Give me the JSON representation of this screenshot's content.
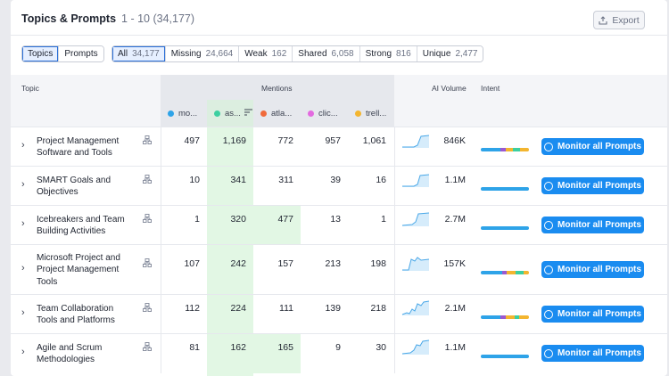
{
  "header": {
    "title": "Topics & Prompts",
    "range": "1 - 10 (34,177)",
    "export_label": "Export"
  },
  "view_tabs": [
    {
      "label": "Topics",
      "active": true
    },
    {
      "label": "Prompts",
      "active": false
    }
  ],
  "filters": [
    {
      "label": "All",
      "count": "34,177",
      "active": true
    },
    {
      "label": "Missing",
      "count": "24,664",
      "active": false
    },
    {
      "label": "Weak",
      "count": "162",
      "active": false
    },
    {
      "label": "Shared",
      "count": "6,058",
      "active": false
    },
    {
      "label": "Strong",
      "count": "816",
      "active": false
    },
    {
      "label": "Unique",
      "count": "2,477",
      "active": false
    }
  ],
  "table": {
    "topic_header": "Topic",
    "mentions_header": "Mentions",
    "volume_header": "AI Volume",
    "intent_header": "Intent",
    "competitors": [
      {
        "label": "mo...",
        "color": "#2ea3e8"
      },
      {
        "label": "as...",
        "color": "#3ccfa0"
      },
      {
        "label": "atla...",
        "color": "#f06a3b"
      },
      {
        "label": "clic...",
        "color": "#e36ae0"
      },
      {
        "label": "trell...",
        "color": "#f3b52f"
      }
    ],
    "monitor_label": "Monitor all Prompts",
    "rows": [
      {
        "topic": "Project Management Software and Tools",
        "values": [
          "497",
          "1,169",
          "772",
          "957",
          "1,061"
        ],
        "volume": "846K",
        "max": 1
      },
      {
        "topic": "SMART Goals and Objectives",
        "values": [
          "10",
          "341",
          "311",
          "39",
          "16"
        ],
        "volume": "1.1M",
        "max": 1
      },
      {
        "topic": "Icebreakers and Team Building Activities",
        "values": [
          "1",
          "320",
          "477",
          "13",
          "1"
        ],
        "volume": "2.7M",
        "max": 2
      },
      {
        "topic": "Microsoft Project and Project Management Tools",
        "values": [
          "107",
          "242",
          "157",
          "213",
          "198"
        ],
        "volume": "157K",
        "max": 1
      },
      {
        "topic": "Team Collaboration Tools and Platforms",
        "values": [
          "112",
          "224",
          "111",
          "139",
          "218"
        ],
        "volume": "2.1M",
        "max": 1
      },
      {
        "topic": "Agile and Scrum Methodologies",
        "values": [
          "81",
          "162",
          "165",
          "9",
          "30"
        ],
        "volume": "1.1M",
        "max": 2
      }
    ]
  },
  "intent_colors": [
    "#2ea3e8",
    "#9b59d0",
    "#f3b52f",
    "#3ccfa0"
  ]
}
